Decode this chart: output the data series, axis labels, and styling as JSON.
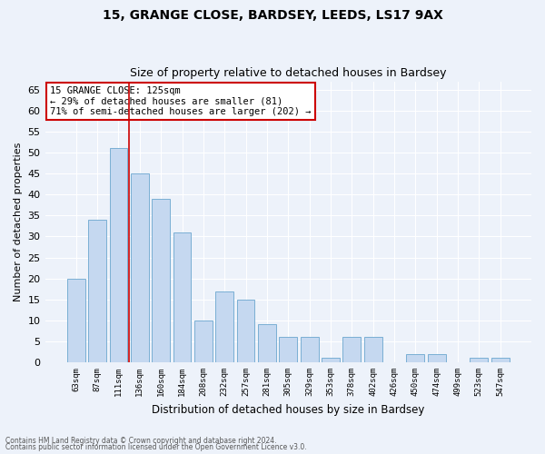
{
  "title1": "15, GRANGE CLOSE, BARDSEY, LEEDS, LS17 9AX",
  "title2": "Size of property relative to detached houses in Bardsey",
  "xlabel": "Distribution of detached houses by size in Bardsey",
  "ylabel": "Number of detached properties",
  "categories": [
    "63sqm",
    "87sqm",
    "111sqm",
    "136sqm",
    "160sqm",
    "184sqm",
    "208sqm",
    "232sqm",
    "257sqm",
    "281sqm",
    "305sqm",
    "329sqm",
    "353sqm",
    "378sqm",
    "402sqm",
    "426sqm",
    "450sqm",
    "474sqm",
    "499sqm",
    "523sqm",
    "547sqm"
  ],
  "values": [
    20,
    34,
    51,
    45,
    39,
    31,
    10,
    17,
    15,
    9,
    6,
    6,
    1,
    6,
    6,
    0,
    2,
    2,
    0,
    1,
    1
  ],
  "bar_color": "#c5d8f0",
  "bar_edge_color": "#7aafd4",
  "vline_x": 2.5,
  "vline_color": "#cc0000",
  "annotation_title": "15 GRANGE CLOSE: 125sqm",
  "annotation_line1": "← 29% of detached houses are smaller (81)",
  "annotation_line2": "71% of semi-detached houses are larger (202) →",
  "annotation_box_color": "#ffffff",
  "annotation_box_edge": "#cc0000",
  "ylim": [
    0,
    67
  ],
  "yticks": [
    0,
    5,
    10,
    15,
    20,
    25,
    30,
    35,
    40,
    45,
    50,
    55,
    60,
    65
  ],
  "footer1": "Contains HM Land Registry data © Crown copyright and database right 2024.",
  "footer2": "Contains public sector information licensed under the Open Government Licence v3.0.",
  "bg_color": "#edf2fa",
  "grid_color": "#ffffff"
}
